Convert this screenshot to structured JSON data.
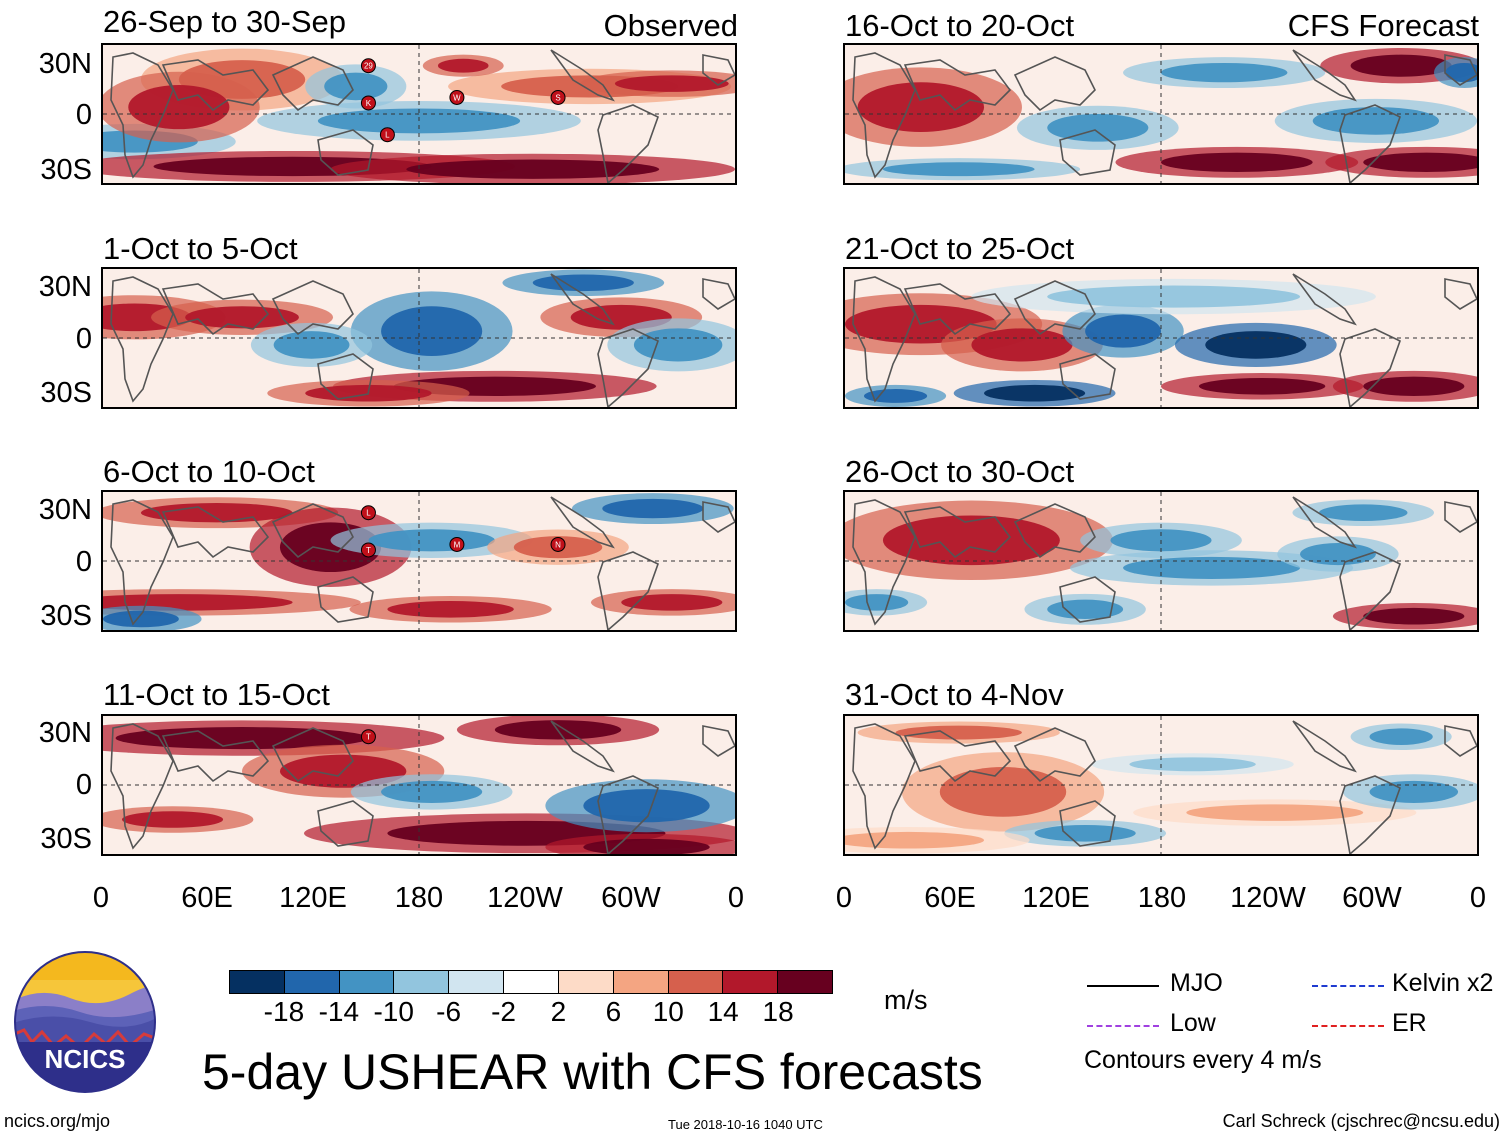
{
  "title": "5-day USHEAR with CFS forecasts",
  "units": "m/s",
  "footer": {
    "left": "ncics.org/mjo",
    "center": "Tue 2018-10-16 1040 UTC",
    "right": "Carl Schreck (cjschrec@ncsu.edu)"
  },
  "logo": {
    "text": "NCICS"
  },
  "legend": {
    "items": [
      {
        "label": "MJO",
        "color": "#000000",
        "style": "solid"
      },
      {
        "label": "Kelvin x2",
        "color": "#1f3bd0",
        "style": "dashed"
      },
      {
        "label": "Low",
        "color": "#a040e0",
        "style": "dashed"
      },
      {
        "label": "ER",
        "color": "#e02020",
        "style": "dashed"
      }
    ],
    "contour_note": "Contours every 4 m/s"
  },
  "colorbar": {
    "colors": [
      "#053061",
      "#2166ac",
      "#4393c3",
      "#92c5de",
      "#d1e5f0",
      "#ffffff",
      "#fddbc7",
      "#f4a582",
      "#d6604d",
      "#b2182b",
      "#67001f"
    ],
    "ticks": [
      "-18",
      "-14",
      "-10",
      "-6",
      "-2",
      "2",
      "6",
      "10",
      "14",
      "18"
    ]
  },
  "chart_data": [
    {
      "type": "heatmap",
      "column": "Observed",
      "title": "26-Sep to 30-Sep",
      "tag": "Observed",
      "variable": "USHEAR",
      "units": "m/s",
      "storms": [
        "29",
        "K",
        "W",
        "S",
        "L"
      ]
    },
    {
      "type": "heatmap",
      "column": "Observed",
      "title": "1-Oct to 5-Oct",
      "variable": "USHEAR",
      "units": "m/s",
      "storms": []
    },
    {
      "type": "heatmap",
      "column": "Observed",
      "title": "6-Oct to 10-Oct",
      "variable": "USHEAR",
      "units": "m/s",
      "storms": [
        "L",
        "T",
        "M",
        "N"
      ]
    },
    {
      "type": "heatmap",
      "column": "Observed",
      "title": "11-Oct to 15-Oct",
      "variable": "USHEAR",
      "units": "m/s",
      "storms": [
        "T"
      ]
    },
    {
      "type": "heatmap",
      "column": "CFS Forecast",
      "title": "16-Oct to 20-Oct",
      "tag": "CFS Forecast",
      "variable": "USHEAR",
      "units": "m/s",
      "storms": []
    },
    {
      "type": "heatmap",
      "column": "CFS Forecast",
      "title": "21-Oct to 25-Oct",
      "variable": "USHEAR",
      "units": "m/s",
      "storms": []
    },
    {
      "type": "heatmap",
      "column": "CFS Forecast",
      "title": "26-Oct to 30-Oct",
      "variable": "USHEAR",
      "units": "m/s",
      "storms": []
    },
    {
      "type": "heatmap",
      "column": "CFS Forecast",
      "title": "31-Oct to 4-Nov",
      "variable": "USHEAR",
      "units": "m/s",
      "storms": []
    }
  ],
  "axes": {
    "lat_labels": [
      "30N",
      "0",
      "30S"
    ],
    "lon_labels": [
      "0",
      "60E",
      "120E",
      "180",
      "120W",
      "60W",
      "0"
    ],
    "lat_range": [
      -40,
      40
    ],
    "lon_range": [
      0,
      360
    ]
  }
}
